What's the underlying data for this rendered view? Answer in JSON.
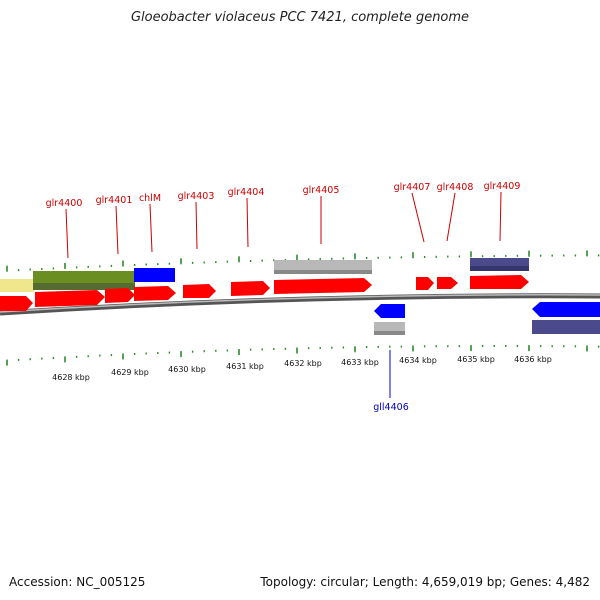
{
  "title": "Gloeobacter violaceus PCC 7421, complete genome",
  "footer": {
    "accession": "Accession: NC_005125",
    "summary": "Topology: circular; Length: 4,659,019 bp; Genes: 4,482"
  },
  "colors": {
    "cds": "#ff0000",
    "cds_reverse": "#0000ff",
    "pseudo": "#b8b8b8",
    "feature_dark": "#4a4a8c",
    "feature_olive": "#6b8e23",
    "feature_khaki": "#f0e68c",
    "tick": "#2e8b2e",
    "backbone": "#808080",
    "label_forward": "#cc0000",
    "label_reverse": "#0000cc"
  },
  "scale": {
    "ticks": [
      "4628 kbp",
      "4629 kbp",
      "4630 kbp",
      "4631 kbp",
      "4632 kbp",
      "4633 kbp",
      "4634 kbp",
      "4635 kbp",
      "4636 kbp"
    ]
  },
  "gene_labels_forward": [
    "glr4400",
    "glr4401",
    "chlM",
    "glr4403",
    "glr4404",
    "glr4405",
    "glr4407",
    "glr4408",
    "glr4409"
  ],
  "gene_labels_reverse": [
    "gll4406"
  ]
}
